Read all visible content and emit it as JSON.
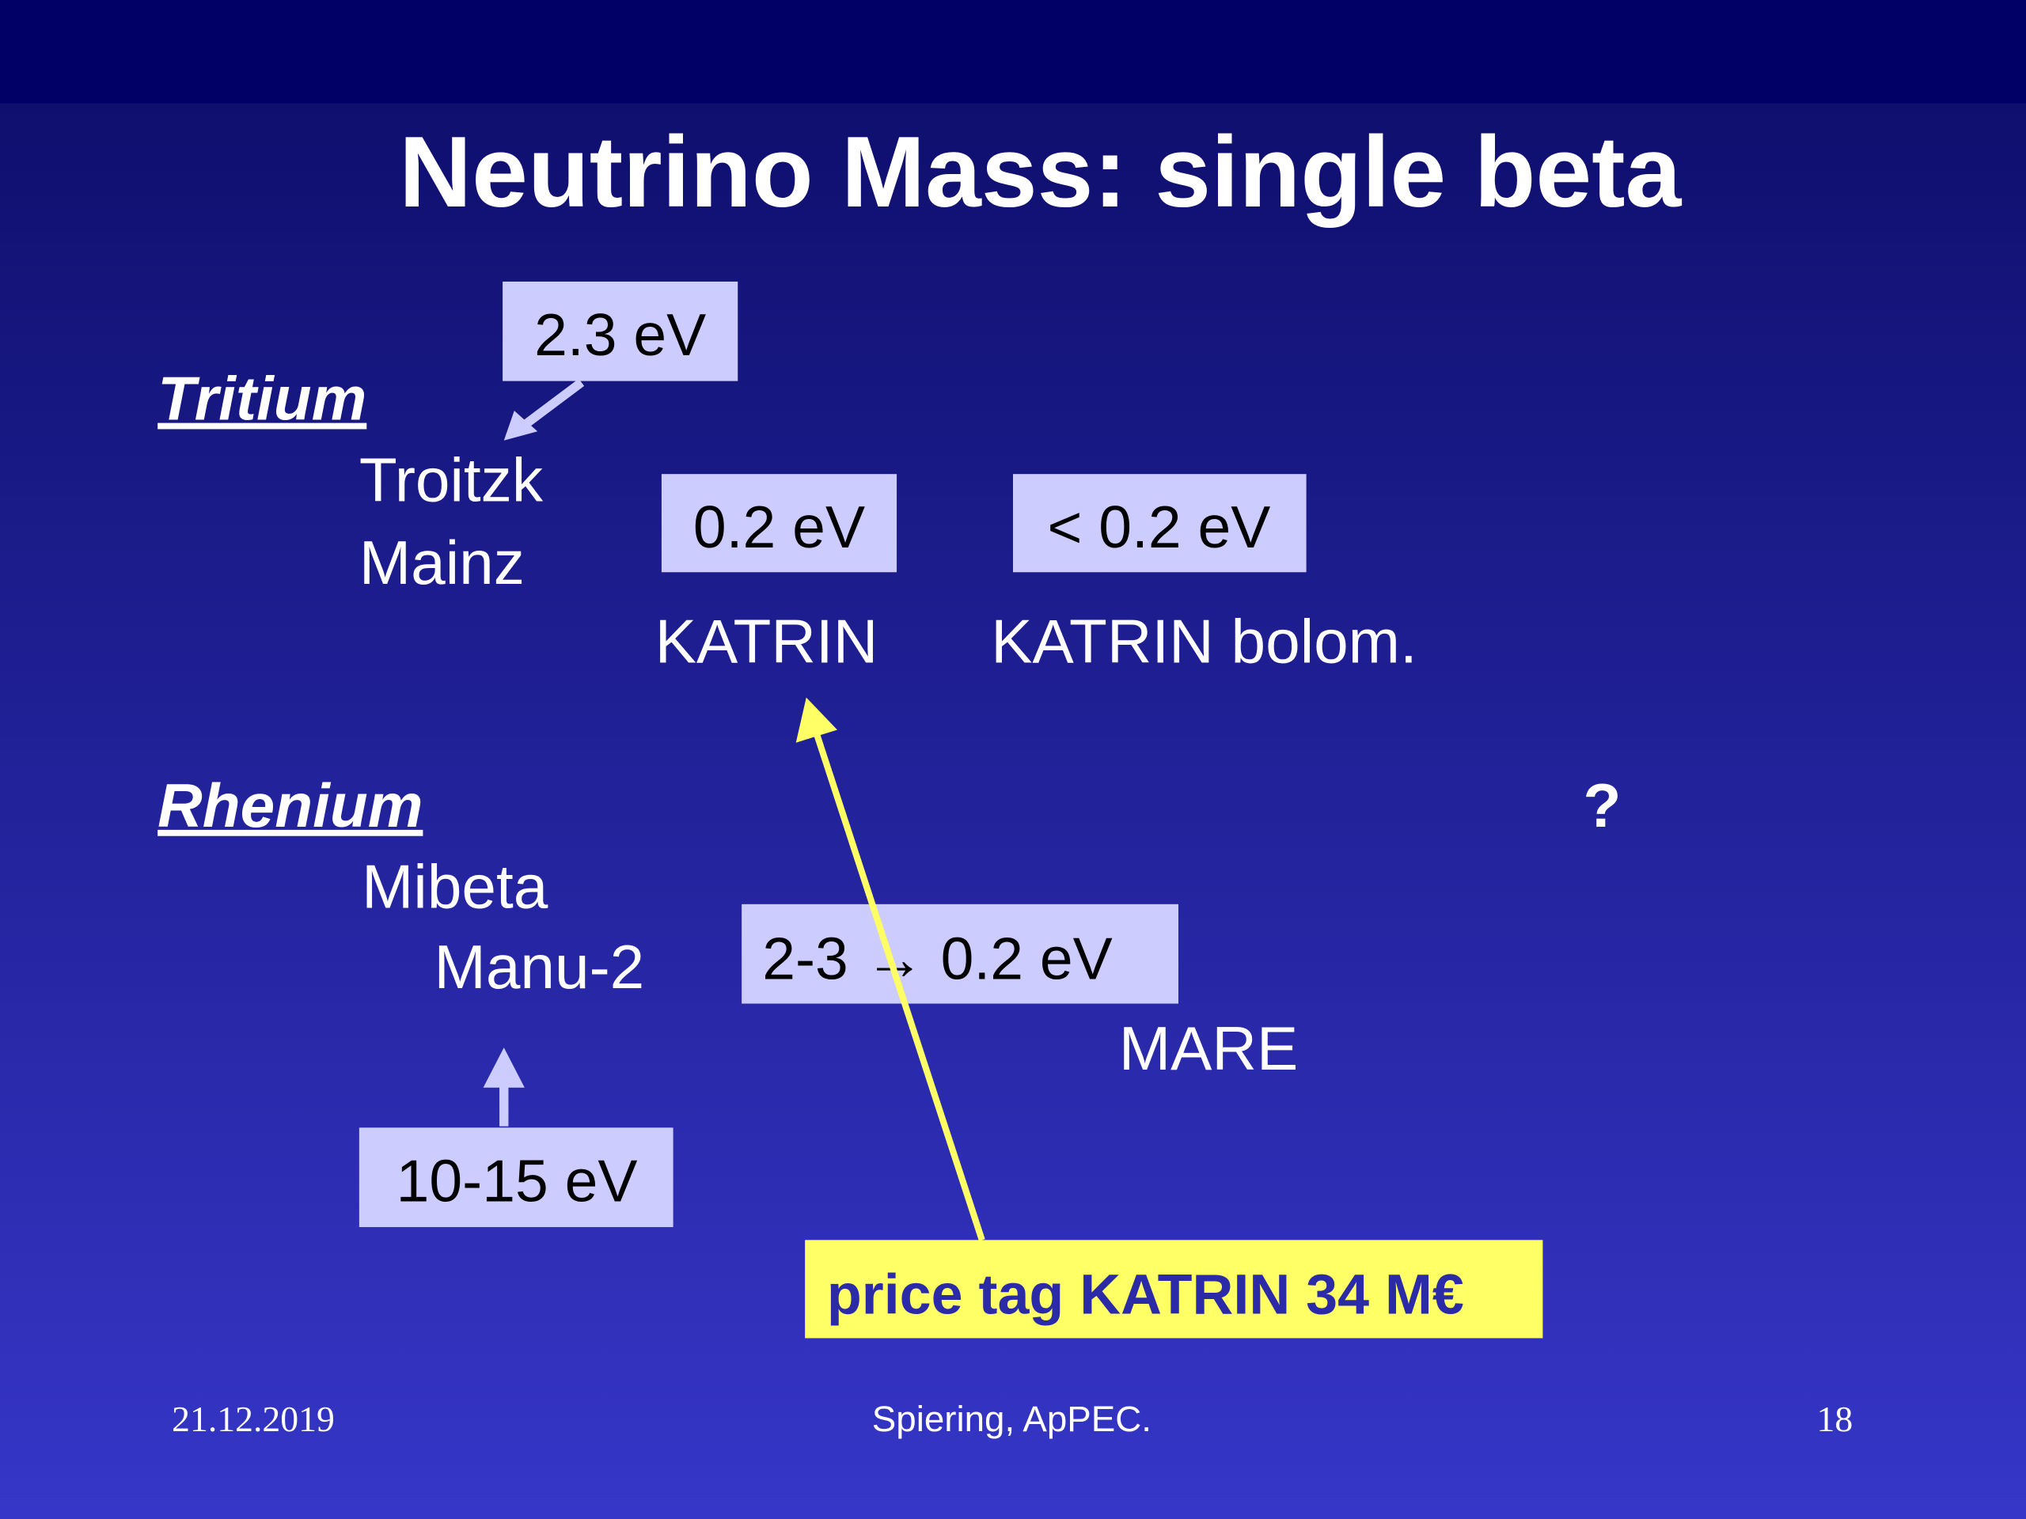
{
  "title": "Neutrino Mass: single beta",
  "tritium": {
    "heading": "Tritium",
    "experiments": [
      "Troitzk",
      "Mainz"
    ],
    "limit": "2.3 eV"
  },
  "katrin": {
    "name": "KATRIN",
    "sensitivity": "0.2 eV"
  },
  "katrin_bolom": {
    "name": "KATRIN bolom.",
    "sensitivity": "< 0.2 eV"
  },
  "rhenium": {
    "heading": "Rhenium",
    "question": "?",
    "experiments": [
      "Mibeta",
      "Manu-2"
    ],
    "limit": "10-15 eV"
  },
  "mare": {
    "name": "MARE",
    "sensitivity": "2-3 → 0.2 eV"
  },
  "price_tag": "price tag KATRIN 34 M€",
  "footer": {
    "date": "21.12.2019",
    "author": "Spiering, ApPEC.",
    "page": "18"
  }
}
